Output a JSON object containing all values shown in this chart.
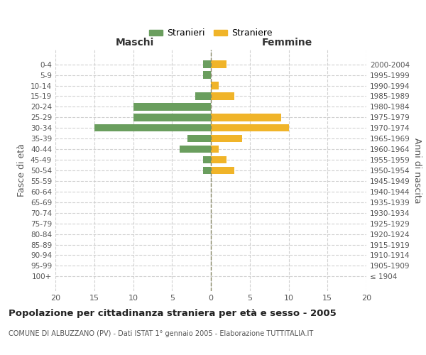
{
  "age_groups": [
    "100+",
    "95-99",
    "90-94",
    "85-89",
    "80-84",
    "75-79",
    "70-74",
    "65-69",
    "60-64",
    "55-59",
    "50-54",
    "45-49",
    "40-44",
    "35-39",
    "30-34",
    "25-29",
    "20-24",
    "15-19",
    "10-14",
    "5-9",
    "0-4"
  ],
  "birth_years": [
    "≤ 1904",
    "1905-1909",
    "1910-1914",
    "1915-1919",
    "1920-1924",
    "1925-1929",
    "1930-1934",
    "1935-1939",
    "1940-1944",
    "1945-1949",
    "1950-1954",
    "1955-1959",
    "1960-1964",
    "1965-1969",
    "1970-1974",
    "1975-1979",
    "1980-1984",
    "1985-1989",
    "1990-1994",
    "1995-1999",
    "2000-2004"
  ],
  "maschi": [
    0,
    0,
    0,
    0,
    0,
    0,
    0,
    0,
    0,
    0,
    1,
    1,
    4,
    3,
    15,
    10,
    10,
    2,
    0,
    1,
    1
  ],
  "femmine": [
    0,
    0,
    0,
    0,
    0,
    0,
    0,
    0,
    0,
    0,
    3,
    2,
    1,
    4,
    10,
    9,
    0,
    3,
    1,
    0,
    2
  ],
  "maschi_color": "#6a9e5e",
  "femmine_color": "#f0b429",
  "title": "Popolazione per cittadinanza straniera per età e sesso - 2005",
  "subtitle": "COMUNE DI ALBUZZANO (PV) - Dati ISTAT 1° gennaio 2005 - Elaborazione TUTTITALIA.IT",
  "ylabel_left": "Fasce di età",
  "ylabel_right": "Anni di nascita",
  "xlabel_left": "Maschi",
  "xlabel_top_right": "Femmine",
  "legend_maschi": "Stranieri",
  "legend_femmine": "Straniere",
  "xlim": 20,
  "background_color": "#ffffff",
  "grid_color": "#cccccc"
}
